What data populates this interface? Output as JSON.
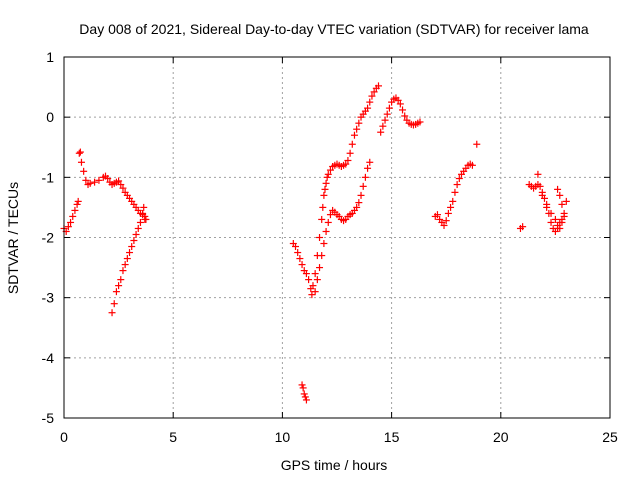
{
  "chart_data": {
    "type": "scatter",
    "title": "Day 008 of 2021, Sidereal Day-to-day VTEC variation (SDTVAR) for receiver lama",
    "xlabel": "GPS time / hours",
    "ylabel": "SDTVAR / TECUs",
    "xlim": [
      0,
      25
    ],
    "ylim": [
      -5,
      1
    ],
    "xticks": [
      0,
      5,
      10,
      15,
      20,
      25
    ],
    "yticks": [
      -5,
      -4,
      -3,
      -2,
      -1,
      0,
      1
    ],
    "grid": true,
    "marker": "+",
    "series_color": "#ff0000",
    "x": [
      0.0,
      0.1,
      0.2,
      0.3,
      0.4,
      0.5,
      0.6,
      0.65,
      0.7,
      0.75,
      0.8,
      0.9,
      1.0,
      1.1,
      1.2,
      1.4,
      1.6,
      1.8,
      1.9,
      2.0,
      2.1,
      2.2,
      2.3,
      2.4,
      2.5,
      2.6,
      2.7,
      2.8,
      2.9,
      3.0,
      3.1,
      3.2,
      3.3,
      3.4,
      3.5,
      3.6,
      3.7,
      3.75,
      2.2,
      2.3,
      2.4,
      2.5,
      2.6,
      2.7,
      2.8,
      2.9,
      3.0,
      3.1,
      3.2,
      3.3,
      3.4,
      3.5,
      3.6,
      3.65,
      3.7,
      10.5,
      10.6,
      10.7,
      10.8,
      10.9,
      11.0,
      11.1,
      11.2,
      11.3,
      11.35,
      11.4,
      11.5,
      11.6,
      11.7,
      11.8,
      11.85,
      11.9,
      11.95,
      12.0,
      12.05,
      12.1,
      12.2,
      12.3,
      12.4,
      12.5,
      12.6,
      12.7,
      12.8,
      12.9,
      13.0,
      13.1,
      13.2,
      13.3,
      13.4,
      13.5,
      13.6,
      13.7,
      13.8,
      13.9,
      14.0,
      14.1,
      14.2,
      14.3,
      14.4,
      11.5,
      11.6,
      11.7,
      11.8,
      11.9,
      12.0,
      12.1,
      12.2,
      12.3,
      12.4,
      12.5,
      12.6,
      12.7,
      12.8,
      12.9,
      13.0,
      13.1,
      13.2,
      13.3,
      13.4,
      13.5,
      13.6,
      13.7,
      13.8,
      13.9,
      14.0,
      10.9,
      10.95,
      11.0,
      11.05,
      11.1,
      14.5,
      14.6,
      14.7,
      14.8,
      14.9,
      15.0,
      15.1,
      15.2,
      15.3,
      15.4,
      15.5,
      15.6,
      15.7,
      15.8,
      15.9,
      16.0,
      16.1,
      16.2,
      16.3,
      17.0,
      17.1,
      17.2,
      17.3,
      17.4,
      17.5,
      17.6,
      17.7,
      17.8,
      17.9,
      18.0,
      18.1,
      18.2,
      18.3,
      18.4,
      18.5,
      18.6,
      18.7,
      18.9,
      20.9,
      21.0,
      21.3,
      21.4,
      21.5,
      21.6,
      21.7,
      21.8,
      21.9,
      22.0,
      22.1,
      22.2,
      22.3,
      22.4,
      22.5,
      22.6,
      22.7,
      22.8,
      22.9,
      21.7,
      21.9,
      22.1,
      22.3,
      22.5,
      22.6,
      22.7,
      22.8,
      22.9,
      23.0,
      22.6,
      22.7,
      22.8
    ],
    "y": [
      -1.85,
      -1.9,
      -1.82,
      -1.75,
      -1.65,
      -1.55,
      -1.45,
      -1.4,
      -0.6,
      -0.58,
      -0.75,
      -0.9,
      -1.05,
      -1.12,
      -1.1,
      -1.08,
      -1.05,
      -1.0,
      -0.98,
      -1.02,
      -1.08,
      -1.12,
      -1.1,
      -1.08,
      -1.06,
      -1.12,
      -1.18,
      -1.25,
      -1.3,
      -1.35,
      -1.4,
      -1.45,
      -1.5,
      -1.55,
      -1.6,
      -1.62,
      -1.65,
      -1.7,
      -3.25,
      -3.1,
      -2.9,
      -2.8,
      -2.7,
      -2.55,
      -2.45,
      -2.35,
      -2.25,
      -2.15,
      -2.05,
      -1.95,
      -1.85,
      -1.75,
      -1.6,
      -1.5,
      -1.7,
      -2.1,
      -2.15,
      -2.25,
      -2.35,
      -2.45,
      -2.55,
      -2.6,
      -2.7,
      -2.85,
      -2.95,
      -2.8,
      -2.6,
      -2.3,
      -2.0,
      -1.7,
      -1.5,
      -1.3,
      -1.2,
      -1.1,
      -1.0,
      -0.95,
      -0.88,
      -0.82,
      -0.8,
      -0.78,
      -0.8,
      -0.82,
      -0.8,
      -0.78,
      -0.72,
      -0.6,
      -0.45,
      -0.3,
      -0.2,
      -0.1,
      0.0,
      0.05,
      0.1,
      0.15,
      0.25,
      0.35,
      0.42,
      0.48,
      0.52,
      -2.9,
      -2.7,
      -2.5,
      -2.3,
      -2.1,
      -1.9,
      -1.75,
      -1.62,
      -1.55,
      -1.58,
      -1.62,
      -1.65,
      -1.7,
      -1.72,
      -1.7,
      -1.65,
      -1.62,
      -1.6,
      -1.55,
      -1.5,
      -1.42,
      -1.3,
      -1.15,
      -1.0,
      -0.85,
      -0.75,
      -4.45,
      -4.5,
      -4.6,
      -4.65,
      -4.7,
      -0.25,
      -0.15,
      -0.05,
      0.05,
      0.15,
      0.25,
      0.3,
      0.32,
      0.28,
      0.22,
      0.12,
      0.02,
      -0.05,
      -0.1,
      -0.12,
      -0.13,
      -0.12,
      -0.1,
      -0.08,
      -1.65,
      -1.62,
      -1.7,
      -1.75,
      -1.8,
      -1.72,
      -1.6,
      -1.5,
      -1.4,
      -1.25,
      -1.12,
      -1.02,
      -0.95,
      -0.9,
      -0.85,
      -0.8,
      -0.78,
      -0.8,
      -0.45,
      -1.85,
      -1.82,
      -1.12,
      -1.15,
      -1.18,
      -1.15,
      -1.12,
      -1.15,
      -1.25,
      -1.35,
      -1.45,
      -1.6,
      -1.75,
      -1.85,
      -1.9,
      -1.85,
      -1.75,
      -1.7,
      -1.65,
      -0.95,
      -1.3,
      -1.5,
      -1.6,
      -1.7,
      -1.8,
      -1.85,
      -1.75,
      -1.6,
      -1.4,
      -1.2,
      -1.3,
      -1.45
    ]
  }
}
